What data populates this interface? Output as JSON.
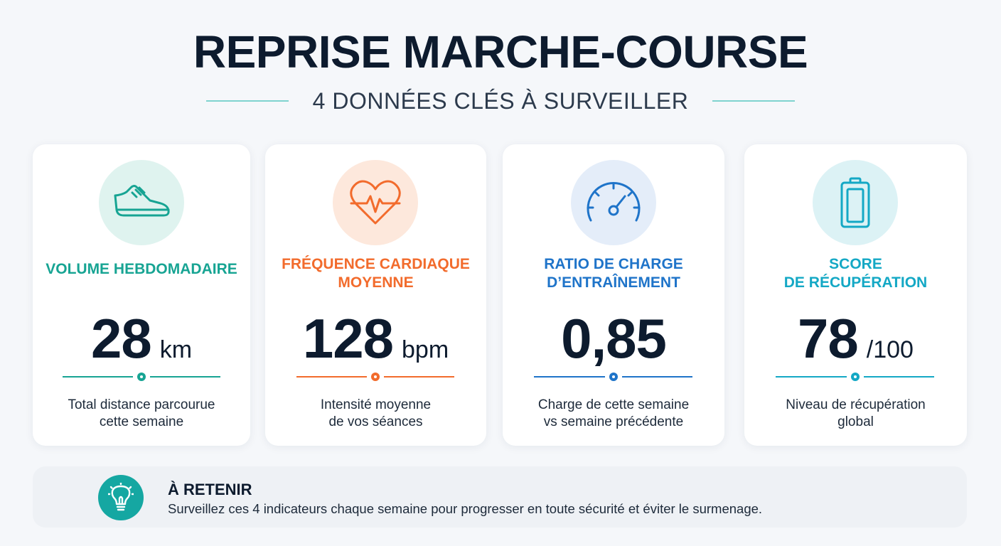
{
  "header": {
    "title": "REPRISE MARCHE-COURSE",
    "subtitle": "4 DONNÉES CLÉS À SURVEILLER"
  },
  "cards": [
    {
      "icon": "running-shoe-icon",
      "label": "VOLUME HEBDOMADAIRE",
      "value": "28",
      "unit": "km",
      "description": "Total distance parcourue\ncette semaine",
      "accent": "#17a493",
      "icon_bg": "#dff3ef"
    },
    {
      "icon": "heart-rate-icon",
      "label": "FRÉQUENCE CARDIAQUE\nMOYENNE",
      "value": "128",
      "unit": "bpm",
      "description": "Intensité moyenne\nde vos séances",
      "accent": "#f26b2c",
      "icon_bg": "#fde8dc"
    },
    {
      "icon": "gauge-icon",
      "label": "RATIO DE CHARGE\nD’ENTRAÎNEMENT",
      "value": "0,85",
      "unit": "",
      "description": "Charge de cette semaine\nvs semaine précédente",
      "accent": "#1f74c9",
      "icon_bg": "#e4edf9"
    },
    {
      "icon": "battery-icon",
      "label": "SCORE\nDE RÉCUPÉRATION",
      "value": "78",
      "unit": "/100",
      "description": "Niveau de récupération\nglobal",
      "accent": "#14a8c5",
      "icon_bg": "#dcf2f5"
    }
  ],
  "note": {
    "icon": "lightbulb-icon",
    "title": "À RETENIR",
    "text": "Surveillez ces 4 indicateurs chaque semaine pour progresser en toute sécurité et éviter le surmenage."
  }
}
